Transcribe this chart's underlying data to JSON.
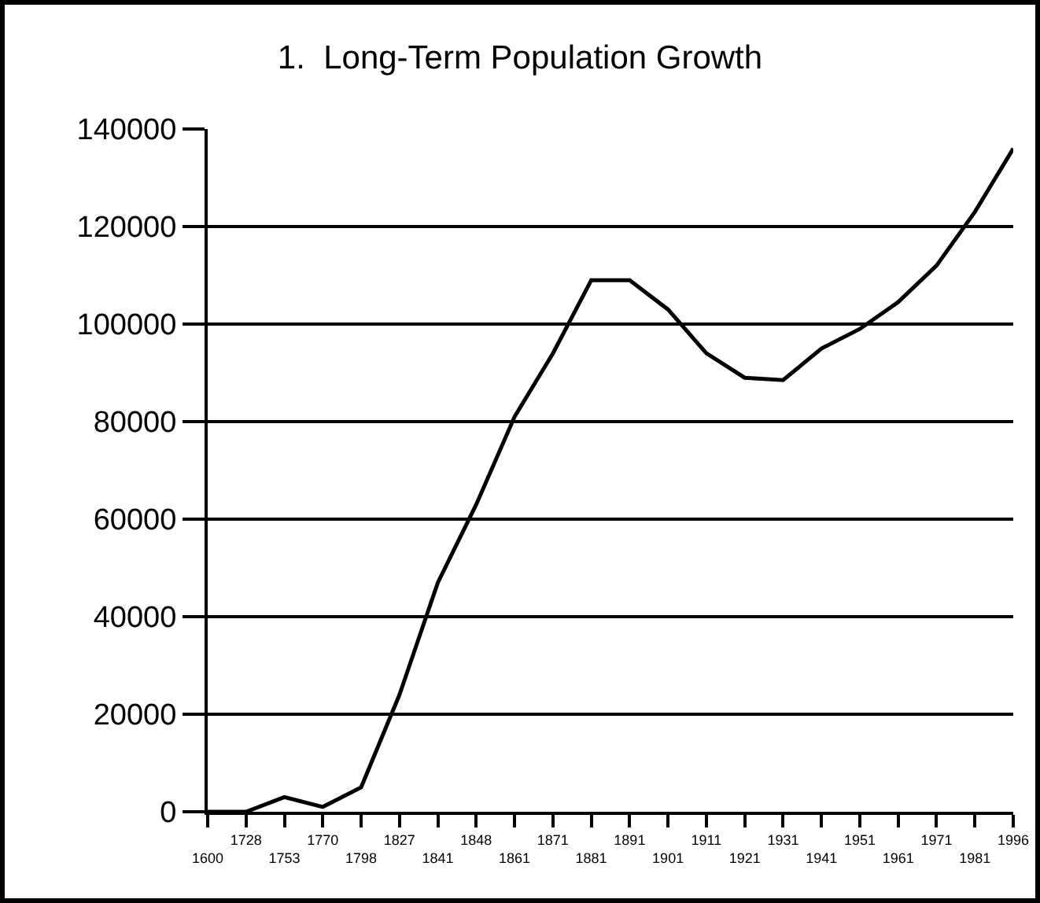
{
  "chart_data": {
    "type": "line",
    "title": "1.  Long-Term Population Growth",
    "categories": [
      "1600",
      "1728",
      "1753",
      "1770",
      "1798",
      "1827",
      "1841",
      "1848",
      "1861",
      "1871",
      "1881",
      "1891",
      "1901",
      "1911",
      "1921",
      "1931",
      "1941",
      "1951",
      "1961",
      "1971",
      "1981",
      "1996"
    ],
    "series": [
      {
        "color": "#000000",
        "values": [
          0,
          0,
          3000,
          1000,
          5000,
          24000,
          47000,
          63000,
          81000,
          94000,
          109000,
          109000,
          103000,
          94000,
          89000,
          88500,
          95000,
          99000,
          104500,
          112000,
          123000,
          136000
        ]
      }
    ],
    "ylim": [
      0,
      140000
    ],
    "yticks": [
      0,
      20000,
      40000,
      60000,
      80000,
      100000,
      120000,
      140000
    ],
    "grid": "y",
    "marker": "none",
    "line_style": "solid"
  }
}
